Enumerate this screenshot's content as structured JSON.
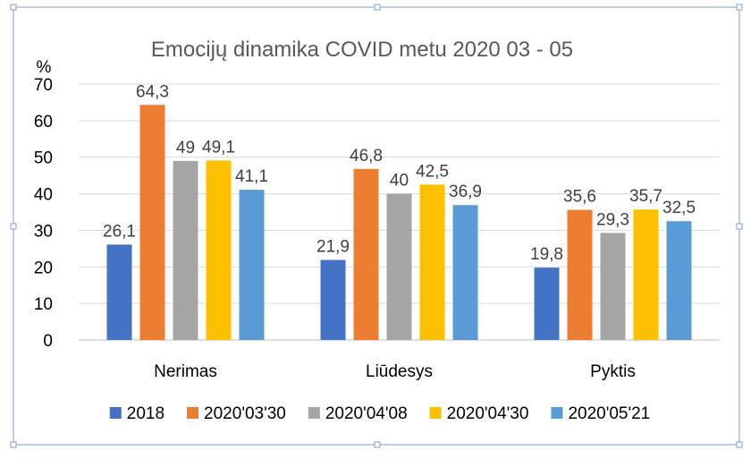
{
  "chart_data": {
    "type": "bar",
    "title": "Emocijų dinamika COVID metu 2020 03 - 05",
    "ylabel": "%",
    "xlabel": "",
    "ylim": [
      0,
      70
    ],
    "yticks": [
      "0",
      "10",
      "20",
      "30",
      "40",
      "50",
      "60",
      "70"
    ],
    "ytick_values": [
      0,
      10,
      20,
      30,
      40,
      50,
      60,
      70
    ],
    "grid": true,
    "legend_position": "bottom",
    "categories": [
      "Nerimas",
      "Liūdesys",
      "Pyktis"
    ],
    "series": [
      {
        "name": "2018",
        "color": "#4472c4",
        "values": [
          26.1,
          21.9,
          19.8
        ],
        "labels": [
          "26,1",
          "21,9",
          "19,8"
        ]
      },
      {
        "name": "2020'03'30",
        "color": "#ed7d31",
        "values": [
          64.3,
          46.8,
          35.6
        ],
        "labels": [
          "64,3",
          "46,8",
          "35,6"
        ]
      },
      {
        "name": "2020'04'08",
        "color": "#a5a5a5",
        "values": [
          49,
          40,
          29.3
        ],
        "labels": [
          "49",
          "40",
          "29,3"
        ]
      },
      {
        "name": "2020'04'30",
        "color": "#ffc000",
        "values": [
          49.1,
          42.5,
          35.7
        ],
        "labels": [
          "49,1",
          "42,5",
          "35,7"
        ]
      },
      {
        "name": "2020'05'21",
        "color": "#5b9bd5",
        "values": [
          41.1,
          36.9,
          32.5
        ],
        "labels": [
          "41,1",
          "36,9",
          "32,5"
        ]
      }
    ]
  }
}
